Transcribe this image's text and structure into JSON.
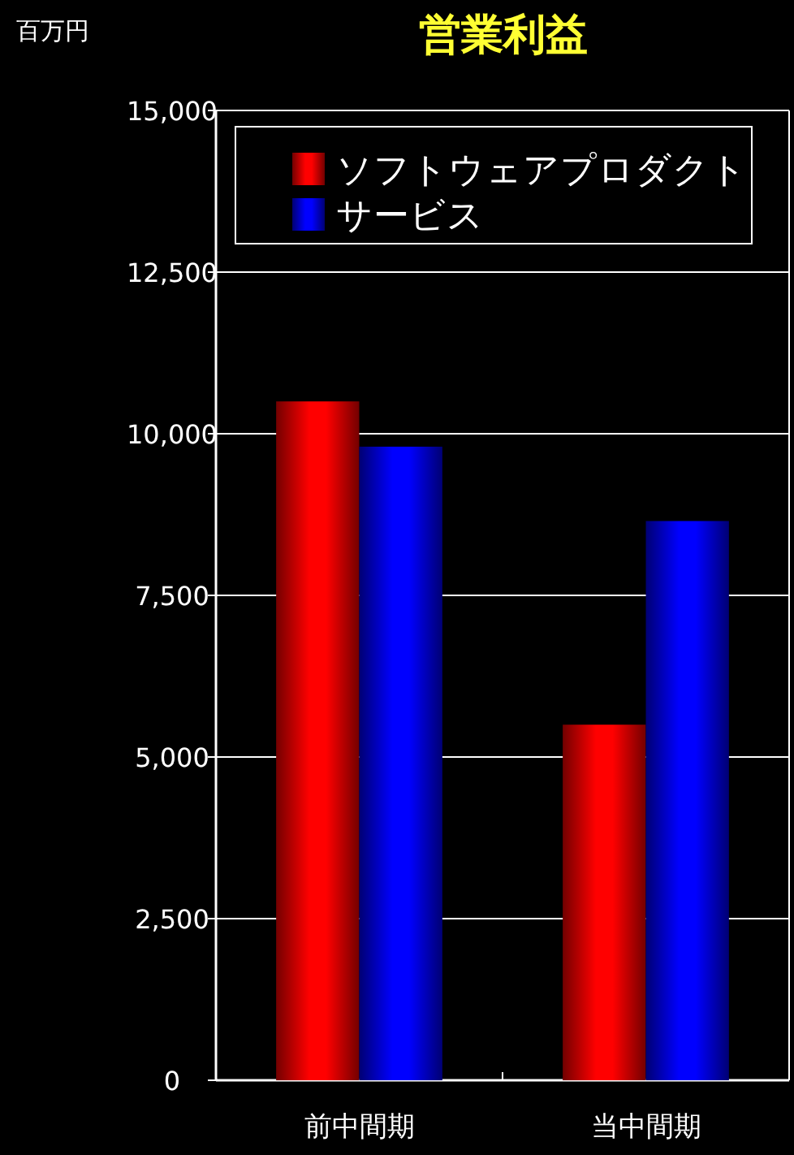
{
  "chart_data": {
    "type": "bar",
    "title": "営業利益",
    "ylabel": "百万円",
    "categories": [
      "前中間期",
      "当中間期"
    ],
    "series": [
      {
        "name": "ソフトウェアプロダクト",
        "color": "#ff0000",
        "values": [
          10500,
          5500
        ]
      },
      {
        "name": "サービス",
        "color": "#0000ff",
        "values": [
          9800,
          8650
        ]
      }
    ],
    "ylim": [
      0,
      15000
    ],
    "yticks": [
      {
        "value": 0,
        "label": "0"
      },
      {
        "value": 2500,
        "label": "2,500"
      },
      {
        "value": 5000,
        "label": "5,000"
      },
      {
        "value": 7500,
        "label": "7,500"
      },
      {
        "value": 10000,
        "label": "10,000"
      },
      {
        "value": 12500,
        "label": "12,500"
      },
      {
        "value": 15000,
        "label": "15,000"
      }
    ],
    "grid": "y",
    "legend": "top"
  }
}
